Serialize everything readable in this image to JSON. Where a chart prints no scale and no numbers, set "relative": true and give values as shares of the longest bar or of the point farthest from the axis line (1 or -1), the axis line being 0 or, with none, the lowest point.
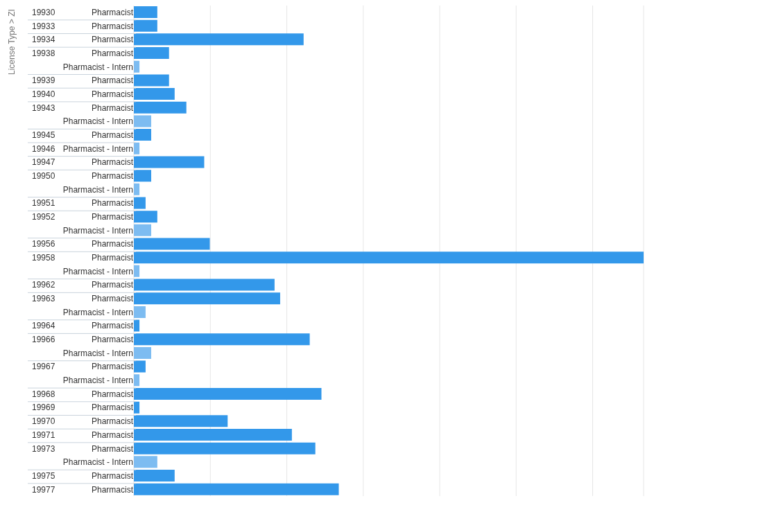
{
  "chart_data": {
    "type": "bar",
    "orientation": "horizontal",
    "relative": true,
    "ylabel": "License Type  >  ZI",
    "grid": "x",
    "categories": [
      "19930",
      "19933",
      "19934",
      "19938",
      "19939",
      "19940",
      "19943",
      "19945",
      "19946",
      "19947",
      "19950",
      "19951",
      "19952",
      "19956",
      "19958",
      "19962",
      "19963",
      "19964",
      "19966",
      "19967",
      "19968",
      "19969",
      "19970",
      "19971",
      "19973",
      "19975",
      "19977"
    ],
    "series": [
      {
        "name": "Pharmacist",
        "color": "#3398ea",
        "values": [
          0.046,
          0.046,
          0.333,
          0.069,
          0.069,
          0.08,
          0.103,
          0.034,
          null,
          0.138,
          0.034,
          0.023,
          0.046,
          0.149,
          1,
          0.276,
          0.287,
          0.011,
          0.345,
          0.023,
          0.368,
          0.011,
          0.184,
          0.31,
          0.356,
          0.08,
          0.402
        ]
      },
      {
        "name": "Pharmacist - Intern",
        "color": "#7dbcf1",
        "values": [
          null,
          null,
          null,
          0.011,
          null,
          null,
          0.034,
          null,
          0.011,
          null,
          0.011,
          null,
          0.034,
          null,
          0.011,
          null,
          0.023,
          null,
          0.034,
          0.011,
          null,
          null,
          null,
          null,
          0.046,
          null,
          null
        ]
      }
    ]
  }
}
